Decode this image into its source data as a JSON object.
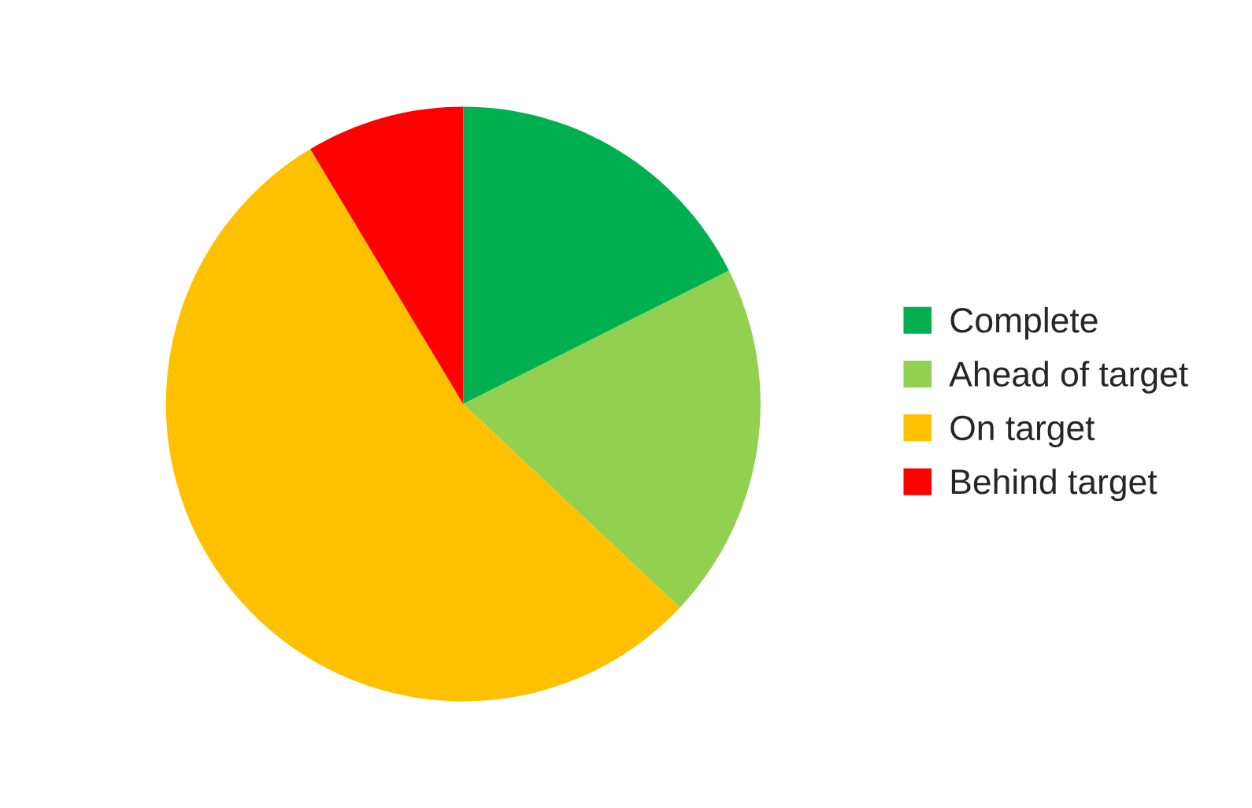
{
  "chart_data": {
    "type": "pie",
    "categories": [
      "Complete",
      "Ahead of target",
      "On target",
      "Behind target"
    ],
    "values": [
      17.6,
      19.4,
      54.4,
      8.6
    ],
    "colors": [
      "#00b050",
      "#92d050",
      "#ffc000",
      "#ff0000"
    ],
    "legend": "right"
  }
}
